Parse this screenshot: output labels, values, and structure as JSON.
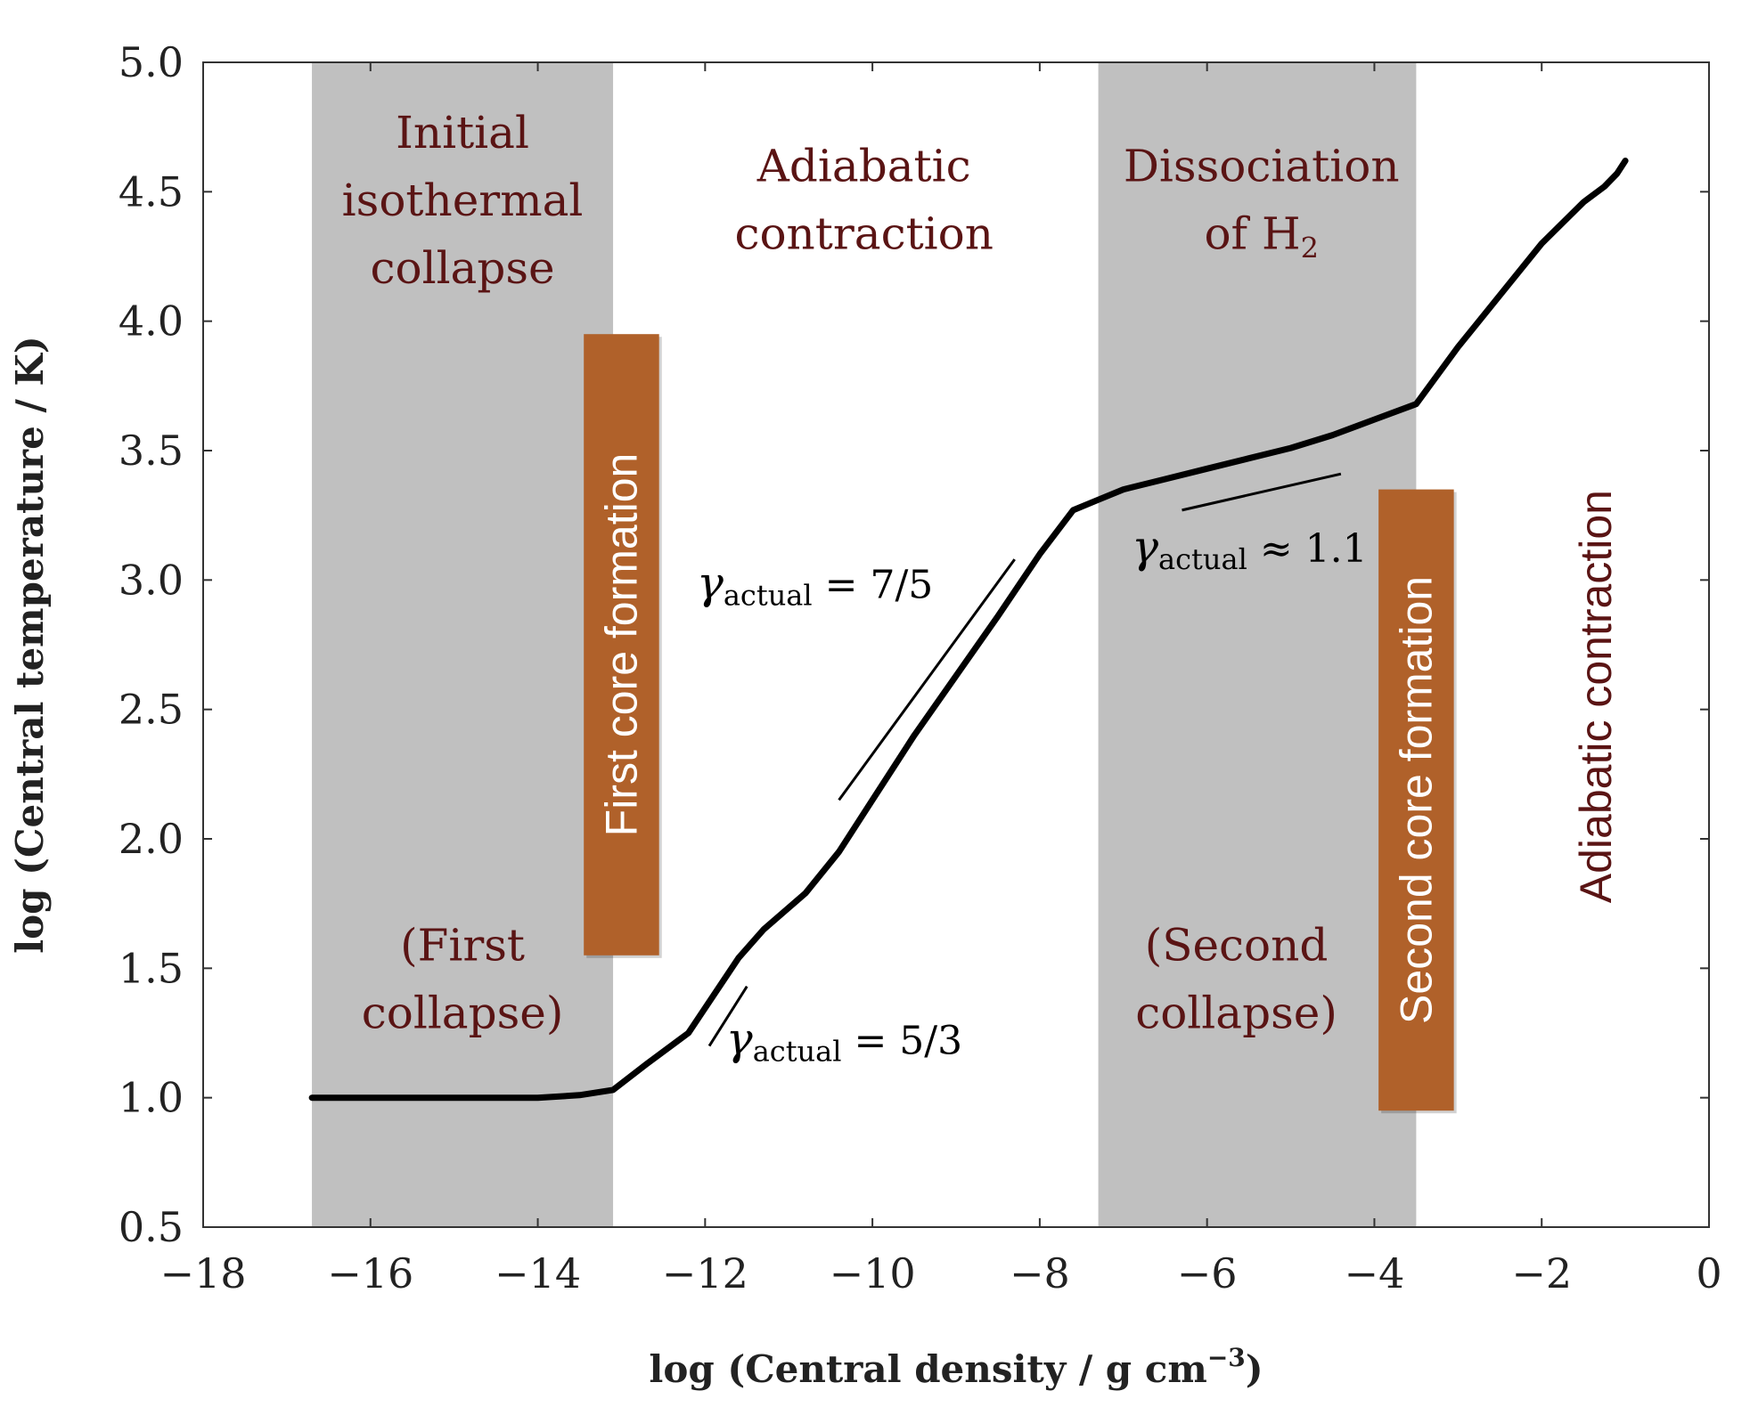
{
  "chart_data": {
    "type": "line",
    "xlabel": "log (Central density / g cm",
    "xlabel_sup": "−3",
    "xlabel_close": ")",
    "ylabel": "log (Central temperature / K)",
    "xlim": [
      -18,
      0
    ],
    "ylim": [
      0.5,
      5.0
    ],
    "x_ticks": [
      -18,
      -16,
      -14,
      -12,
      -10,
      -8,
      -6,
      -4,
      -2,
      0
    ],
    "x_tick_labels": [
      "−18",
      "−16",
      "−14",
      "−12",
      "−10",
      "−8",
      "−6",
      "−4",
      "−2",
      "0"
    ],
    "y_ticks": [
      0.5,
      1.0,
      1.5,
      2.0,
      2.5,
      3.0,
      3.5,
      4.0,
      4.5,
      5.0
    ],
    "y_tick_labels": [
      "0.5",
      "1.0",
      "1.5",
      "2.0",
      "2.5",
      "3.0",
      "3.5",
      "4.0",
      "4.5",
      "5.0"
    ],
    "grid": false,
    "shaded_bands": [
      {
        "x_from": -16.7,
        "x_to": -13.1,
        "color": "#c0c0c0"
      },
      {
        "x_from": -7.3,
        "x_to": -3.5,
        "color": "#c0c0c0"
      }
    ],
    "series": [
      {
        "color": "#000000",
        "x": [
          -16.7,
          -15.5,
          -14.5,
          -14.0,
          -13.5,
          -13.1,
          -12.7,
          -12.2,
          -11.6,
          -11.3,
          -10.8,
          -10.4,
          -10.0,
          -9.5,
          -9.0,
          -8.5,
          -8.0,
          -7.6,
          -7.3,
          -7.0,
          -6.5,
          -6.0,
          -5.5,
          -5.0,
          -4.5,
          -4.0,
          -3.5,
          -3.0,
          -2.5,
          -2.0,
          -1.5,
          -1.25,
          -1.1,
          -1.0
        ],
        "y": [
          1.0,
          1.0,
          1.0,
          1.0,
          1.01,
          1.03,
          1.13,
          1.25,
          1.54,
          1.65,
          1.79,
          1.95,
          2.15,
          2.4,
          2.63,
          2.86,
          3.1,
          3.27,
          3.31,
          3.35,
          3.39,
          3.43,
          3.47,
          3.51,
          3.56,
          3.62,
          3.68,
          3.9,
          4.1,
          4.3,
          4.46,
          4.52,
          4.57,
          4.62
        ]
      }
    ],
    "reference_lines": [
      {
        "x": [
          -11.95,
          -11.5
        ],
        "y": [
          1.2,
          1.43
        ]
      },
      {
        "x": [
          -10.4,
          -8.3
        ],
        "y": [
          2.15,
          3.08
        ]
      },
      {
        "x": [
          -6.3,
          -4.4
        ],
        "y": [
          3.27,
          3.41
        ]
      }
    ],
    "region_labels": [
      {
        "lines": [
          "Initial",
          "isothermal",
          "collapse"
        ],
        "x": -14.9,
        "y_top": 4.67
      },
      {
        "lines": [
          "Adiabatic",
          "contraction"
        ],
        "x": -10.1,
        "y_top": 4.54
      },
      {
        "lines": [
          "Dissociation",
          "of H"
        ],
        "sub": "2",
        "x": -5.35,
        "y_top": 4.54
      },
      {
        "lines": [
          "(First",
          "collapse)"
        ],
        "x": -14.9,
        "y_top": 1.53
      },
      {
        "lines": [
          "(Second",
          "collapse)"
        ],
        "x": -5.65,
        "y_top": 1.53
      }
    ],
    "gamma_labels": [
      {
        "symbol": "γ",
        "sub": "actual",
        "rest": " = 7/5",
        "x": -12.1,
        "y": 2.93
      },
      {
        "symbol": "γ",
        "sub": "actual",
        "rest": " = 5/3",
        "x": -11.75,
        "y": 1.17
      },
      {
        "symbol": "γ",
        "sub": "actual",
        "rest": " ≈ 1.1",
        "x": -6.9,
        "y": 3.07
      }
    ],
    "vertical_boxes": [
      {
        "text": "First core formation",
        "x_from": -13.45,
        "x_to": -12.55,
        "y_from": 1.55,
        "y_to": 3.95,
        "color": "#b0612a"
      },
      {
        "text": "Second core formation",
        "x_from": -3.95,
        "x_to": -3.05,
        "y_from": 0.95,
        "y_to": 3.35,
        "color": "#b0612a"
      }
    ],
    "vertical_labels": [
      {
        "text": "Adiabatic contraction",
        "x": -1.35,
        "y": 2.55
      }
    ]
  }
}
